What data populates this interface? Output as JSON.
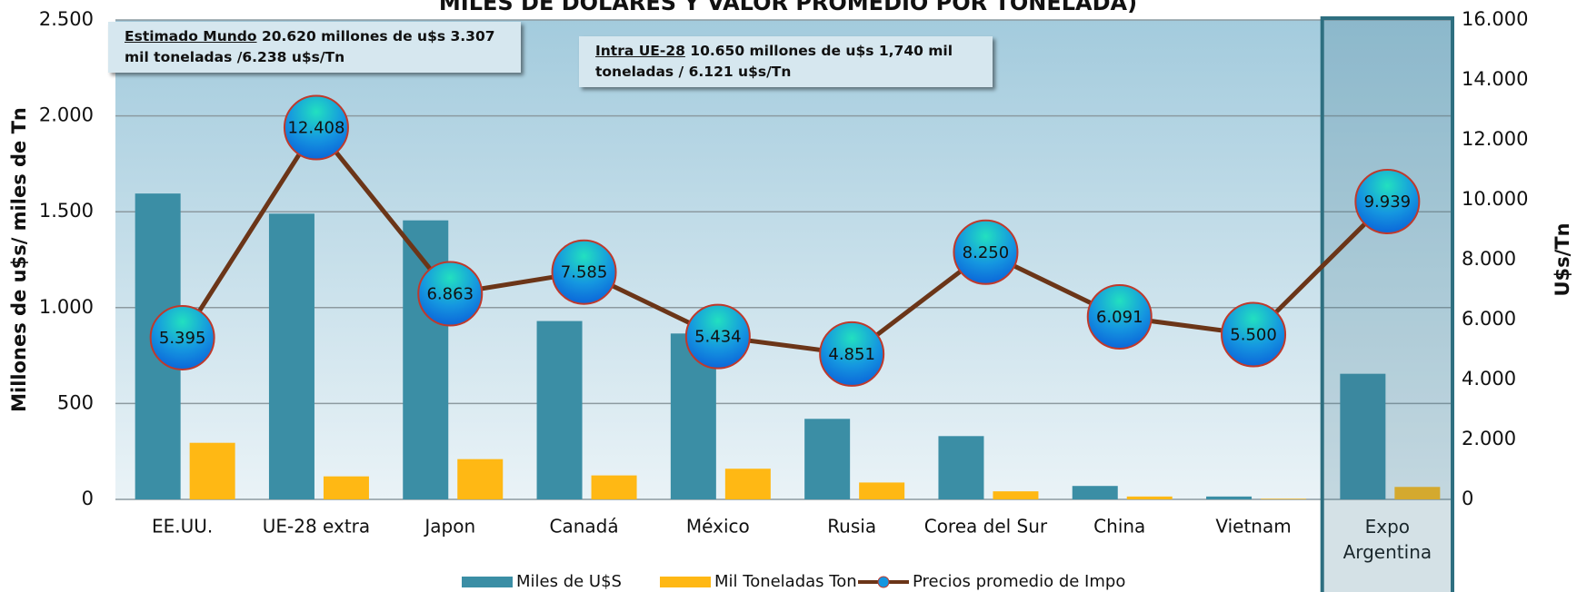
{
  "chart_data": {
    "type": "bar-line",
    "title": "MILES DE DOLARES Y VALOR PROMEDIO POR TONELADA)",
    "y_label": "Millones de u$s/ miles de Tn",
    "y2_label": "U$s/Tn",
    "annotations": [
      {
        "underlined": "Estimado Mundo",
        "text": "20.620 millones de u$s 3.307 mil toneladas /6.238 u$s/Tn"
      },
      {
        "underlined": "Intra UE-28",
        "text": "10.650 millones de u$s 1,740 mil toneladas / 6.121 u$s/Tn"
      }
    ],
    "categories": [
      "EE.UU.",
      "UE-28  extra",
      "Japon",
      "Canadá",
      "México",
      "Rusia",
      "Corea del Sur",
      "China",
      "Vietnam",
      "Expo Argentina"
    ],
    "series": [
      {
        "name": "Miles de U$S",
        "type": "bar",
        "color": "#3b8ea5",
        "values": [
          1595,
          1490,
          1455,
          930,
          865,
          420,
          330,
          70,
          15,
          655
        ]
      },
      {
        "name": "Mil Toneladas Ton",
        "type": "bar",
        "color": "#ffb814",
        "values": [
          295,
          120,
          210,
          125,
          160,
          88,
          42,
          15,
          3,
          65
        ]
      },
      {
        "name": "Precios promedio de Impo",
        "type": "line",
        "axis": "y2",
        "color": "#6b3518",
        "values": [
          5395,
          12408,
          6863,
          7585,
          5434,
          4851,
          8250,
          6091,
          5500,
          9939
        ],
        "value_labels": [
          "5.395",
          "12.408",
          "6.863",
          "7.585",
          "5.434",
          "4.851",
          "8.250",
          "6.091",
          "5.500",
          "9.939"
        ]
      }
    ],
    "ylim": [
      0,
      2500
    ],
    "yticks": [
      0,
      {
        "value": 500,
        "label": "500"
      },
      {
        "value": 1000,
        "label": "1.000"
      },
      {
        "value": 1500,
        "label": "1.500"
      },
      {
        "value": 2000,
        "label": "2.000"
      },
      {
        "value": 2500,
        "label": "2.500"
      }
    ],
    "y2lim": [
      0,
      16000
    ],
    "y2ticks": [
      0,
      {
        "value": 2000,
        "label": "2.000"
      },
      {
        "value": 4000,
        "label": "4.000"
      },
      {
        "value": 6000,
        "label": "6.000"
      },
      {
        "value": 8000,
        "label": "8.000"
      },
      {
        "value": 10000,
        "label": "10.000"
      },
      {
        "value": 12000,
        "label": "12.000"
      },
      {
        "value": 14000,
        "label": "14.000"
      },
      {
        "value": 16000,
        "label": "16.000"
      }
    ],
    "grid": true,
    "legend": "bottom"
  }
}
